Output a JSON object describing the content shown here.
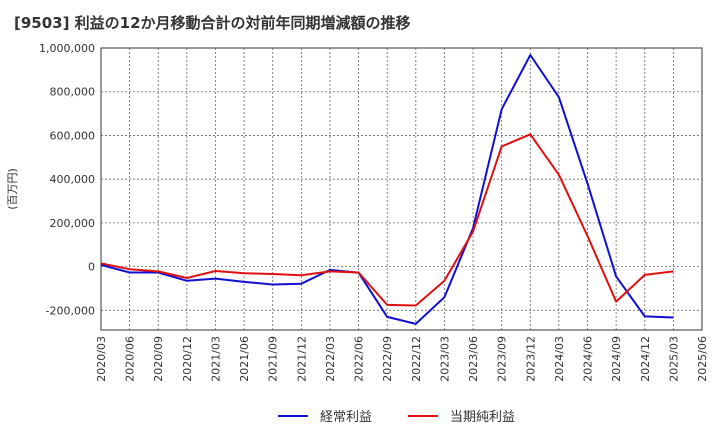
{
  "title": "[9503]  利益の12か月移動合計の対前年同期増減額の推移",
  "chart_data": {
    "type": "line",
    "title": "[9503]  利益の12か月移動合計の対前年同期増減額の推移",
    "ylabel": "(百万円)",
    "xlabel": "",
    "ylim": [
      -290000,
      1000000
    ],
    "yticks": [
      -200000,
      0,
      200000,
      400000,
      600000,
      800000,
      1000000
    ],
    "ytick_labels": [
      "-200,000",
      "0",
      "200,000",
      "400,000",
      "600,000",
      "800,000",
      "1,000,000"
    ],
    "x": [
      "2020/03",
      "2020/06",
      "2020/09",
      "2020/12",
      "2021/03",
      "2021/06",
      "2021/09",
      "2021/12",
      "2022/03",
      "2022/06",
      "2022/09",
      "2022/12",
      "2023/03",
      "2023/06",
      "2023/09",
      "2023/12",
      "2024/03",
      "2024/06",
      "2024/09",
      "2024/12",
      "2025/03",
      "2025/06"
    ],
    "grid": true,
    "series": [
      {
        "name": "経常利益",
        "color": "#1010d0",
        "values": [
          8000,
          -27000,
          -27000,
          -65000,
          -55000,
          -70000,
          -82000,
          -78000,
          -15000,
          -28000,
          -230000,
          -262000,
          -140000,
          175000,
          720000,
          968000,
          775000,
          380000,
          -45000,
          -228000,
          -233000,
          null
        ]
      },
      {
        "name": "当期純利益",
        "color": "#e01010",
        "values": [
          15000,
          -12000,
          -22000,
          -52000,
          -20000,
          -30000,
          -34000,
          -40000,
          -22000,
          -27000,
          -175000,
          -178000,
          -65000,
          160000,
          550000,
          605000,
          420000,
          140000,
          -160000,
          -38000,
          -22000,
          null
        ]
      }
    ],
    "legend": [
      "経常利益",
      "当期純利益"
    ],
    "legend_position": "bottom"
  }
}
